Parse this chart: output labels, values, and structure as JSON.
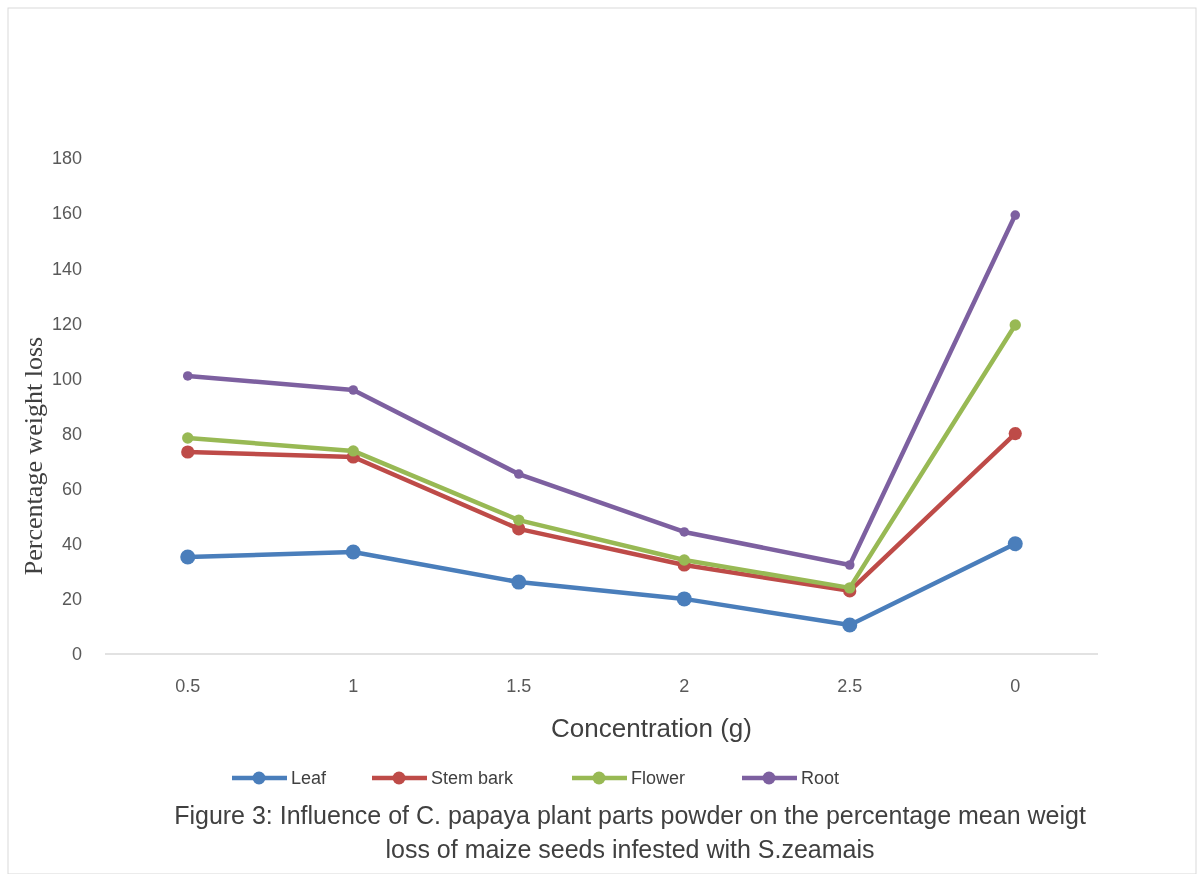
{
  "chart_data": {
    "type": "line",
    "xlabel": "Concentration (g)",
    "ylabel": "Percentage weight loss",
    "categories": [
      "0.5",
      "1",
      "1.5",
      "2",
      "2.5",
      "0"
    ],
    "series": [
      {
        "name": "Leaf",
        "color": "#4a7ebb",
        "values": [
          35.2,
          37,
          26.1,
          20,
          10.5,
          40
        ]
      },
      {
        "name": "Stem bark",
        "color": "#be4b48",
        "values": [
          73.3,
          71.5,
          45.4,
          32.3,
          22.9,
          80
        ]
      },
      {
        "name": "Flower",
        "color": "#98b954",
        "values": [
          78.4,
          73.7,
          48.6,
          34.1,
          24,
          119.4
        ]
      },
      {
        "name": "Root",
        "color": "#7d60a0",
        "values": [
          100.9,
          95.8,
          65.3,
          44.3,
          32.3,
          159.3
        ]
      }
    ],
    "ylim": [
      0,
      180
    ],
    "yticks": [
      0,
      20,
      40,
      60,
      80,
      100,
      120,
      140,
      160,
      180
    ],
    "grid": false,
    "legend": "bottom",
    "marker": "circle",
    "line_style": "solid",
    "annotations": [
      "Figure 3:  Influence of C. papaya plant parts powder on the percentage mean weigt loss of maize seeds infested with S.zeamais"
    ]
  }
}
